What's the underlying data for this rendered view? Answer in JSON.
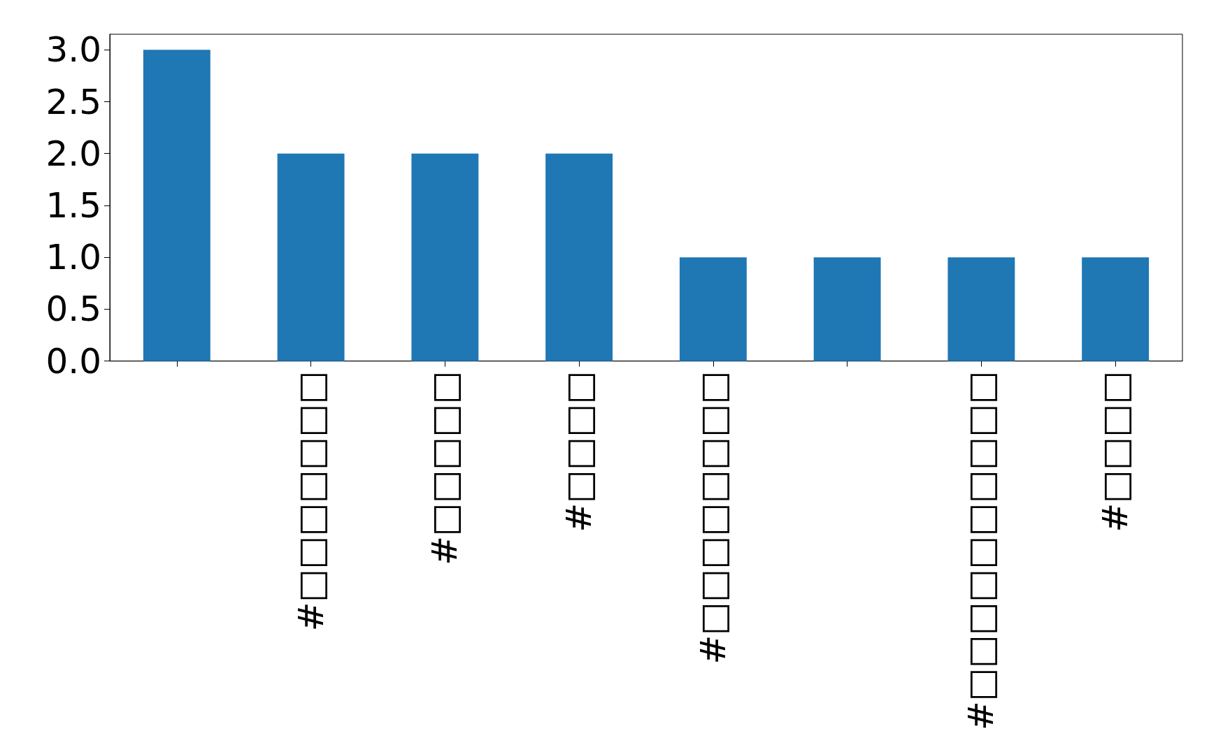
{
  "chart_data": {
    "type": "bar",
    "categories": [
      null,
      "#□□□□□□□",
      "#□□□□□",
      "#□□□□",
      "#□□□□□□□□",
      null,
      "#□□□□□□□□□□",
      "#□□□□"
    ],
    "values": [
      3,
      2,
      2,
      2,
      1,
      1,
      1,
      1
    ],
    "color": "#1f77b4",
    "ylim": [
      0,
      3.15
    ],
    "yticks": [
      {
        "value": 0,
        "label": "0.0"
      },
      {
        "value": 0.5,
        "label": "0.5"
      },
      {
        "value": 1,
        "label": "1.0"
      },
      {
        "value": 1.5,
        "label": "1.5"
      },
      {
        "value": 2,
        "label": "2.0"
      },
      {
        "value": 2.5,
        "label": "2.5"
      },
      {
        "value": 3,
        "label": "3.0"
      }
    ],
    "grid": false
  }
}
